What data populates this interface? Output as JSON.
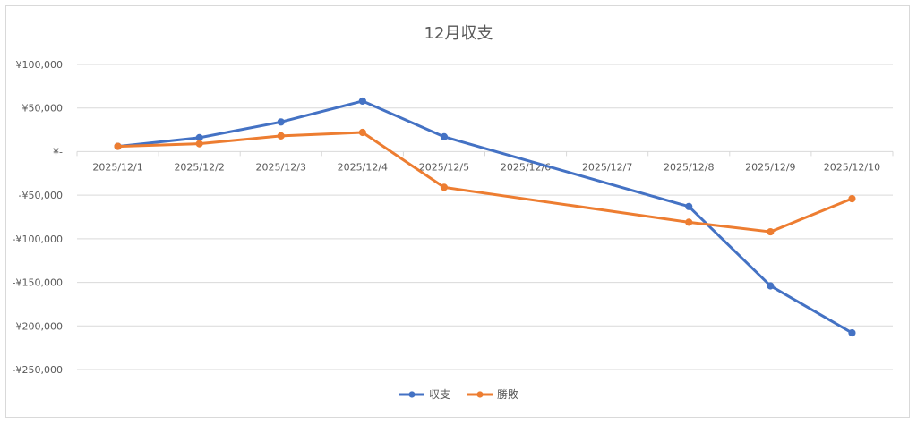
{
  "chart_data": {
    "type": "line",
    "title": "12月収支",
    "categories": [
      "2025/12/1",
      "2025/12/2",
      "2025/12/3",
      "2025/12/4",
      "2025/12/5",
      "2025/12/6",
      "2025/12/7",
      "2025/12/8",
      "2025/12/9",
      "2025/12/10"
    ],
    "y_ticks": [
      100000,
      50000,
      0,
      -50000,
      -100000,
      -150000,
      -200000,
      -250000
    ],
    "y_tick_labels": [
      "¥100,000",
      "¥50,000",
      "¥-",
      "-¥50,000",
      "-¥100,000",
      "-¥150,000",
      "-¥200,000",
      "-¥250,000"
    ],
    "ylim": [
      -250000,
      100000
    ],
    "grid": true,
    "legend_position": "bottom",
    "series": [
      {
        "name": "収支",
        "color": "#4472c4",
        "points": [
          {
            "x": "2025/12/1",
            "y": 6000
          },
          {
            "x": "2025/12/2",
            "y": 16000
          },
          {
            "x": "2025/12/3",
            "y": 34000
          },
          {
            "x": "2025/12/4",
            "y": 58000
          },
          {
            "x": "2025/12/5",
            "y": 17000
          },
          {
            "x": "2025/12/8",
            "y": -63000
          },
          {
            "x": "2025/12/9",
            "y": -154000
          },
          {
            "x": "2025/12/10",
            "y": -208000
          }
        ]
      },
      {
        "name": "勝敗",
        "color": "#ed7d31",
        "points": [
          {
            "x": "2025/12/1",
            "y": 6000
          },
          {
            "x": "2025/12/2",
            "y": 9000
          },
          {
            "x": "2025/12/3",
            "y": 18000
          },
          {
            "x": "2025/12/4",
            "y": 22000
          },
          {
            "x": "2025/12/5",
            "y": -41000
          },
          {
            "x": "2025/12/8",
            "y": -81000
          },
          {
            "x": "2025/12/9",
            "y": -92000
          },
          {
            "x": "2025/12/10",
            "y": -54000
          }
        ]
      }
    ]
  }
}
